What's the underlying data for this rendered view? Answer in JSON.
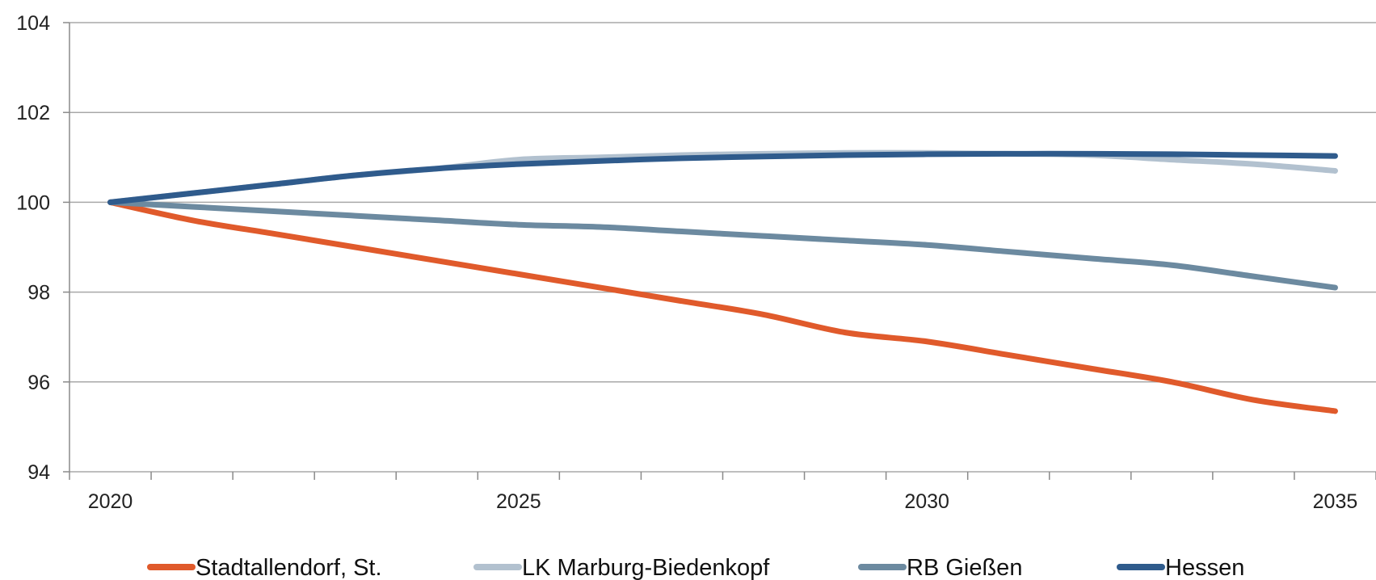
{
  "chart_data": {
    "type": "line",
    "x": [
      2020,
      2021,
      2022,
      2023,
      2024,
      2025,
      2026,
      2027,
      2028,
      2029,
      2030,
      2031,
      2032,
      2033,
      2034,
      2035
    ],
    "x_tick_labels": [
      "2020",
      "2025",
      "2030",
      "2035"
    ],
    "x_tick_values": [
      2020,
      2025,
      2030,
      2035
    ],
    "y_tick_labels": [
      "94",
      "96",
      "98",
      "100",
      "102",
      "104"
    ],
    "y_tick_values": [
      94,
      96,
      98,
      100,
      102,
      104
    ],
    "xlim": [
      2019.5,
      2035.5
    ],
    "ylim": [
      94,
      104
    ],
    "grid": "horizontal",
    "legend_position": "bottom",
    "series": [
      {
        "name": "Stadtallendorf, St.",
        "color": "#e05a2b",
        "values": [
          100,
          99.6,
          99.3,
          99.0,
          98.7,
          98.4,
          98.1,
          97.8,
          97.5,
          97.1,
          96.9,
          96.6,
          96.3,
          96.0,
          95.6,
          95.35
        ]
      },
      {
        "name": "LK Marburg-Biedenkopf",
        "color": "#b2c1cf",
        "values": [
          100,
          100.2,
          100.4,
          100.6,
          100.75,
          100.95,
          101.0,
          101.05,
          101.08,
          101.1,
          101.1,
          101.08,
          101.05,
          100.95,
          100.85,
          100.7
        ]
      },
      {
        "name": "RB Gießen",
        "color": "#6c8aa0",
        "values": [
          100,
          99.9,
          99.8,
          99.7,
          99.6,
          99.5,
          99.45,
          99.35,
          99.25,
          99.15,
          99.05,
          98.9,
          98.75,
          98.6,
          98.35,
          98.1
        ]
      },
      {
        "name": "Hessen",
        "color": "#2f5b8c",
        "values": [
          100,
          100.2,
          100.4,
          100.6,
          100.75,
          100.85,
          100.92,
          100.98,
          101.02,
          101.05,
          101.07,
          101.08,
          101.08,
          101.07,
          101.05,
          101.03
        ]
      }
    ]
  }
}
